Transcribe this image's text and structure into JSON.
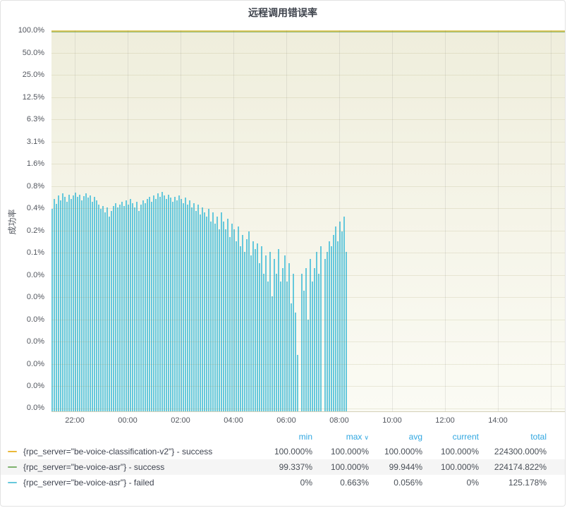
{
  "panel": {
    "title": "远程调用错误率"
  },
  "chart": {
    "y_axis_label": "成功率"
  },
  "colors": {
    "series_yellow": "#EAB839",
    "series_green": "#7EB26D",
    "series_cyan": "#65C8DC",
    "legend_header_blue": "#2fa6e0",
    "plot_fill_top": "#efeedc",
    "plot_fill_bottom": "#fbfbf4"
  },
  "legend": {
    "headers": {
      "min": "min",
      "max": "max",
      "avg": "avg",
      "current": "current",
      "total": "total"
    },
    "sort_caret": "∨",
    "sorted_by": "max",
    "rows": [
      {
        "label": "{rpc_server=\"be-voice-classification-v2\"} - success",
        "color": "#EAB839",
        "min": "100.000%",
        "max": "100.000%",
        "avg": "100.000%",
        "current": "100.000%",
        "total": "224300.000%"
      },
      {
        "label": "{rpc_server=\"be-voice-asr\"} - success",
        "color": "#7EB26D",
        "min": "99.337%",
        "max": "100.000%",
        "avg": "99.944%",
        "current": "100.000%",
        "total": "224174.822%"
      },
      {
        "label": "{rpc_server=\"be-voice-asr\"} - failed",
        "color": "#65C8DC",
        "min": "0%",
        "max": "0.663%",
        "avg": "0.056%",
        "current": "0%",
        "total": "125.178%"
      }
    ]
  },
  "chart_data": {
    "type": "bar",
    "title": "远程调用错误率",
    "xlabel": "",
    "ylabel": "成功率",
    "y_scale": "log2",
    "y_ticks": [
      "100.0%",
      "50.0%",
      "25.0%",
      "12.5%",
      "6.3%",
      "3.1%",
      "1.6%",
      "0.8%",
      "0.4%",
      "0.2%",
      "0.1%",
      "0.0%",
      "0.0%",
      "0.0%",
      "0.0%",
      "0.0%",
      "0.0%",
      "0.0%"
    ],
    "x_ticks": [
      "22:00",
      "00:00",
      "02:00",
      "04:00",
      "06:00",
      "08:00",
      "10:00",
      "12:00",
      "14:00"
    ],
    "legend_position": "bottom-table",
    "grid": true,
    "series": [
      {
        "name": "{rpc_server=\"be-voice-classification-v2\"} - success",
        "type": "line",
        "color": "#EAB839",
        "constant_value_pct": 100.0,
        "extent": "full-width",
        "stats": {
          "min": 100.0,
          "max": 100.0,
          "avg": 100.0,
          "current": 100.0,
          "total": 224300.0
        }
      },
      {
        "name": "{rpc_server=\"be-voice-asr\"} - success",
        "type": "line",
        "color": "#7EB26D",
        "constant_value_pct": 100.0,
        "extent": "full-width",
        "stats": {
          "min": 99.337,
          "max": 100.0,
          "avg": 99.944,
          "current": 100.0,
          "total": 224174.822
        }
      },
      {
        "name": "{rpc_server=\"be-voice-asr\"} - failed",
        "type": "bars",
        "color": "#65C8DC",
        "time_start": "21:10",
        "time_end": "08:25",
        "stats": {
          "min": 0,
          "max": 0.663,
          "avg": 0.056,
          "current": 0,
          "total": 125.178
        },
        "values_pct": [
          0.38,
          0.52,
          0.45,
          0.58,
          0.5,
          0.62,
          0.55,
          0.48,
          0.6,
          0.52,
          0.58,
          0.63,
          0.55,
          0.6,
          0.5,
          0.57,
          0.62,
          0.54,
          0.58,
          0.48,
          0.55,
          0.5,
          0.44,
          0.38,
          0.42,
          0.34,
          0.4,
          0.3,
          0.36,
          0.42,
          0.46,
          0.4,
          0.44,
          0.48,
          0.42,
          0.5,
          0.44,
          0.52,
          0.46,
          0.4,
          0.48,
          0.36,
          0.44,
          0.5,
          0.46,
          0.52,
          0.55,
          0.48,
          0.58,
          0.52,
          0.62,
          0.56,
          0.65,
          0.58,
          0.52,
          0.6,
          0.54,
          0.48,
          0.56,
          0.5,
          0.58,
          0.52,
          0.46,
          0.54,
          0.44,
          0.5,
          0.4,
          0.46,
          0.36,
          0.44,
          0.32,
          0.4,
          0.34,
          0.3,
          0.38,
          0.26,
          0.34,
          0.24,
          0.3,
          0.2,
          0.34,
          0.26,
          0.2,
          0.28,
          0.16,
          0.24,
          0.2,
          0.14,
          0.22,
          0.12,
          0.17,
          0.1,
          0.15,
          0.19,
          0.09,
          0.14,
          0.11,
          0.13,
          0.07,
          0.12,
          0.05,
          0.09,
          0.04,
          0.1,
          0.025,
          0.08,
          0.05,
          0.11,
          0.04,
          0.06,
          0.09,
          0.04,
          0.07,
          0.02,
          0.05,
          0.015,
          0.004,
          null,
          0.05,
          0.03,
          0.06,
          0.012,
          0.08,
          0.04,
          0.06,
          0.1,
          0.05,
          0.12,
          null,
          0.08,
          0.1,
          0.14,
          0.12,
          0.17,
          0.22,
          0.14,
          0.26,
          0.19,
          0.3,
          0.1
        ]
      }
    ]
  }
}
